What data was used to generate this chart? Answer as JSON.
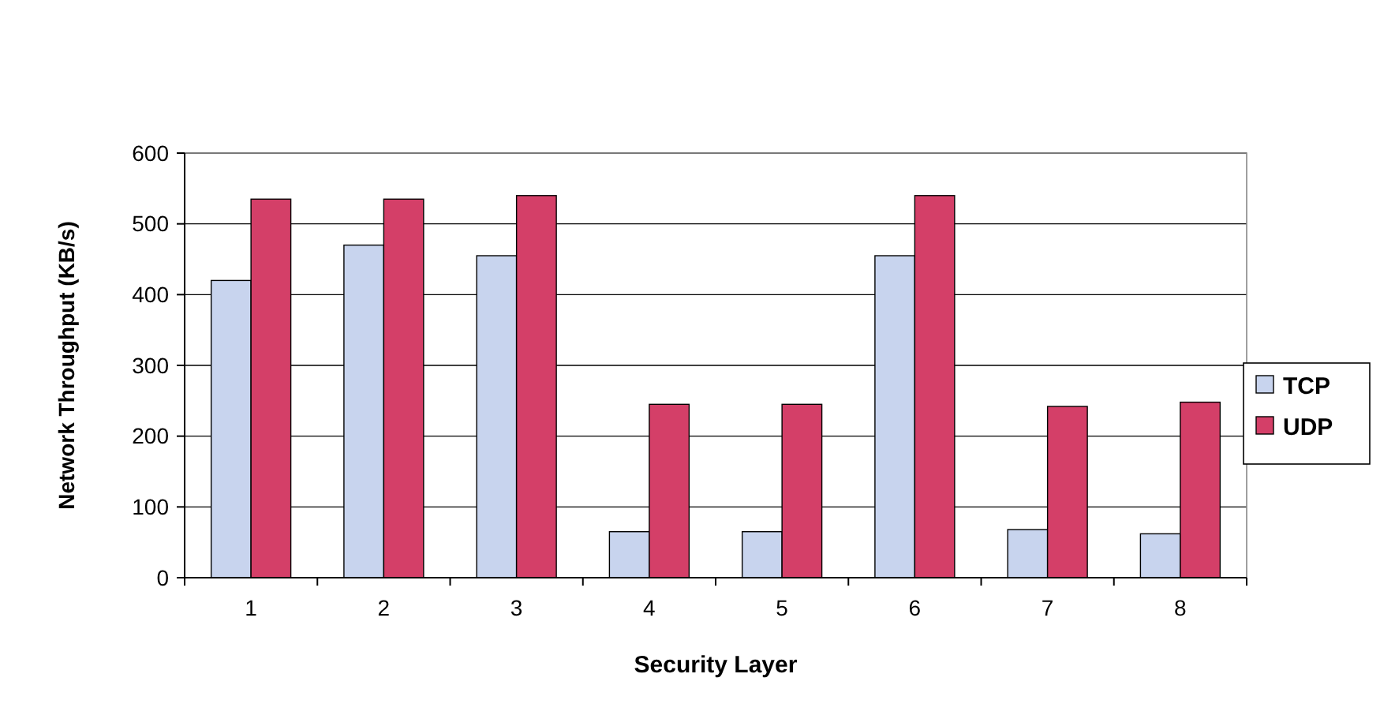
{
  "chart_data": {
    "type": "bar",
    "xlabel": "Security Layer",
    "ylabel": "Network Throughput (KB/s)",
    "categories": [
      "1",
      "2",
      "3",
      "4",
      "5",
      "6",
      "7",
      "8"
    ],
    "series": [
      {
        "name": "TCP",
        "color": "#c8d4ee",
        "values": [
          420,
          470,
          455,
          65,
          65,
          455,
          68,
          62
        ]
      },
      {
        "name": "UDP",
        "color": "#d43f68",
        "values": [
          535,
          535,
          540,
          245,
          245,
          540,
          242,
          248
        ]
      }
    ],
    "ylim": [
      0,
      600
    ],
    "yticks": [
      0,
      100,
      200,
      300,
      400,
      500,
      600
    ],
    "grid": "y",
    "legend": "right"
  }
}
